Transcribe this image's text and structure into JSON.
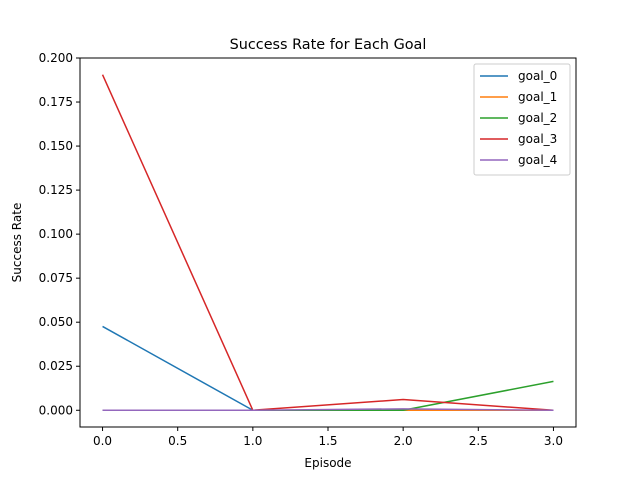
{
  "chart_data": {
    "type": "line",
    "title": "Success Rate for Each Goal",
    "xlabel": "Episode",
    "ylabel": "Success Rate",
    "x": [
      0,
      1,
      2,
      3
    ],
    "xlim": [
      -0.15,
      3.15
    ],
    "ylim": [
      -0.0095,
      0.2
    ],
    "xticks": [
      0.0,
      0.5,
      1.0,
      1.5,
      2.0,
      2.5,
      3.0
    ],
    "xtick_labels": [
      "0.0",
      "0.5",
      "1.0",
      "1.5",
      "2.0",
      "2.5",
      "3.0"
    ],
    "yticks": [
      0.0,
      0.025,
      0.05,
      0.075,
      0.1,
      0.125,
      0.15,
      0.175,
      0.2
    ],
    "ytick_labels": [
      "0.000",
      "0.025",
      "0.050",
      "0.075",
      "0.100",
      "0.125",
      "0.150",
      "0.175",
      "0.200"
    ],
    "grid": false,
    "legend_position": "top-right",
    "series": [
      {
        "name": "goal_0",
        "color": "#1f77b4",
        "values": [
          0.0476,
          0.0,
          0.0,
          0.0
        ]
      },
      {
        "name": "goal_1",
        "color": "#ff7f0e",
        "values": [
          0.0,
          0.0,
          0.0,
          0.0
        ]
      },
      {
        "name": "goal_2",
        "color": "#2ca02c",
        "values": [
          0.0,
          0.0,
          0.0,
          0.0164
        ]
      },
      {
        "name": "goal_3",
        "color": "#d62728",
        "values": [
          0.1905,
          0.0,
          0.0061,
          0.0
        ]
      },
      {
        "name": "goal_4",
        "color": "#9467bd",
        "values": [
          0.0,
          0.0,
          0.0008,
          0.0
        ]
      }
    ]
  }
}
